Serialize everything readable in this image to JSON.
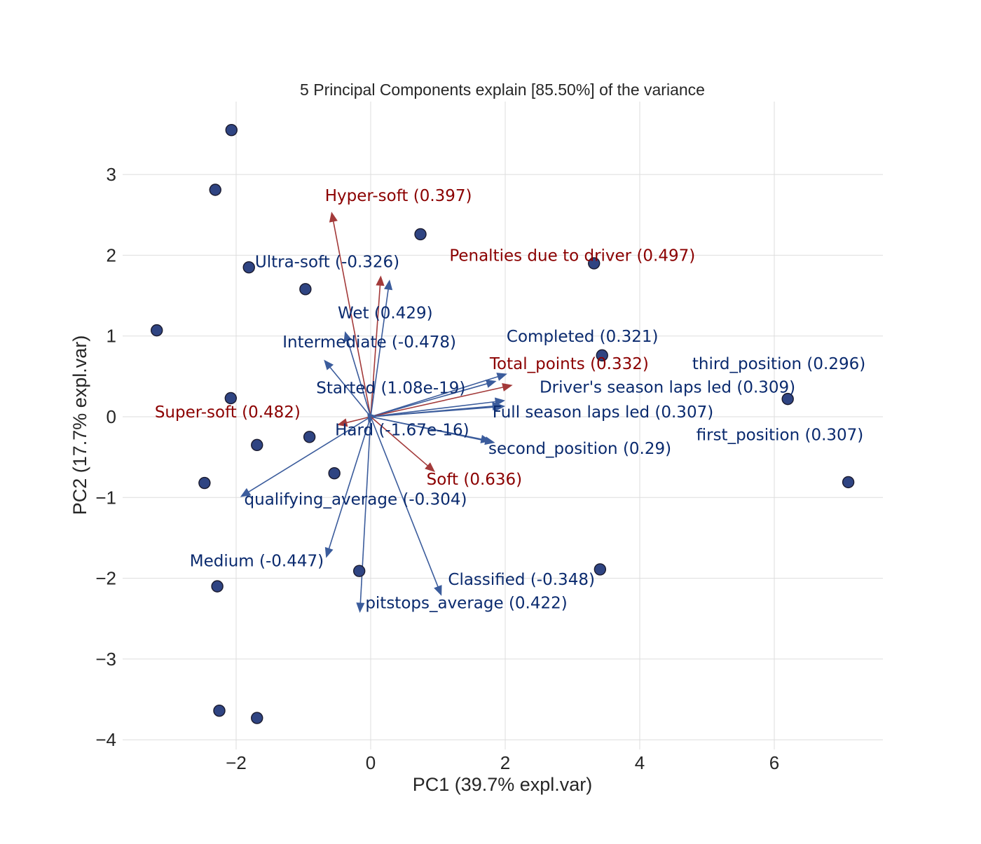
{
  "chart_data": {
    "type": "scatter",
    "title": "5 Principal Components explain [85.50%] of the variance",
    "xlabel": "PC1 (39.7% expl.var)",
    "ylabel": "PC2 (17.7% expl.var)",
    "xlim": [
      -3.5,
      7.6
    ],
    "ylim": [
      -4.0,
      3.9
    ],
    "x_ticks": [
      -2,
      0,
      2,
      4,
      6
    ],
    "y_ticks": [
      -4,
      -3,
      -2,
      -1,
      0,
      1,
      2,
      3
    ],
    "x_tick_labels": [
      "−2",
      "0",
      "2",
      "4",
      "6"
    ],
    "y_tick_labels": [
      "−4",
      "−3",
      "−2",
      "−1",
      "0",
      "1",
      "2",
      "3"
    ],
    "grid": true,
    "colors": {
      "point_fill": "#2f4482",
      "point_edge": "#1a1a2e",
      "loading_blue": "#0a2a6e",
      "loading_red": "#8b0000",
      "arrow_blue": "#3b5c9c",
      "arrow_red": "#a33a3a",
      "grid": "#dddddd"
    },
    "points": [
      {
        "x": -2.07,
        "y": 3.55
      },
      {
        "x": -2.31,
        "y": 2.81
      },
      {
        "x": 0.74,
        "y": 2.26
      },
      {
        "x": -1.81,
        "y": 1.85
      },
      {
        "x": 3.32,
        "y": 1.9
      },
      {
        "x": -0.97,
        "y": 1.58
      },
      {
        "x": -3.18,
        "y": 1.07
      },
      {
        "x": 3.44,
        "y": 0.76
      },
      {
        "x": -2.08,
        "y": 0.23
      },
      {
        "x": 6.2,
        "y": 0.22
      },
      {
        "x": -1.69,
        "y": -0.35
      },
      {
        "x": -0.91,
        "y": -0.25
      },
      {
        "x": -0.54,
        "y": -0.7
      },
      {
        "x": -2.47,
        "y": -0.82
      },
      {
        "x": 7.1,
        "y": -0.81
      },
      {
        "x": 3.41,
        "y": -1.89
      },
      {
        "x": -0.17,
        "y": -1.91
      },
      {
        "x": -2.28,
        "y": -2.1
      },
      {
        "x": -2.25,
        "y": -3.64
      },
      {
        "x": -1.69,
        "y": -3.73
      }
    ],
    "loadings": [
      {
        "label": "Hyper-soft (0.397)",
        "x": -0.58,
        "y": 2.53,
        "color": "red"
      },
      {
        "label": "Penalties due to driver (0.497)",
        "x": 0.15,
        "y": 1.74,
        "color": "red"
      },
      {
        "label": "Ultra-soft (-0.326)",
        "x": 0.28,
        "y": 1.69,
        "color": "blue"
      },
      {
        "label": "Wet (0.429)",
        "x": -0.38,
        "y": 1.05,
        "color": "blue"
      },
      {
        "label": "Intermediate (-0.478)",
        "x": -0.69,
        "y": 0.7,
        "color": "blue"
      },
      {
        "label": "Completed (0.321)",
        "x": 2.02,
        "y": 0.53,
        "color": "blue"
      },
      {
        "label": "third_position (0.296)",
        "x": 1.86,
        "y": 0.44,
        "color": "blue"
      },
      {
        "label": "Total_points (0.332)",
        "x": 2.1,
        "y": 0.39,
        "color": "red"
      },
      {
        "label": "Driver's season laps led (0.309)",
        "x": 1.99,
        "y": 0.2,
        "color": "blue"
      },
      {
        "label": "Full season laps led (0.307)",
        "x": 1.99,
        "y": 0.13,
        "color": "blue"
      },
      {
        "label": "Started (1.08e-19)",
        "x": 1.95,
        "y": 0.14,
        "color": "blue"
      },
      {
        "label": "Super-soft (0.482)",
        "x": -0.49,
        "y": -0.1,
        "color": "red"
      },
      {
        "label": "Hard (-1.67e-16)",
        "x": -0.03,
        "y": -0.08,
        "color": "blue"
      },
      {
        "label": "second_position (0.29)",
        "x": 1.84,
        "y": -0.32,
        "color": "blue"
      },
      {
        "label": "first_position (0.307)",
        "x": 1.78,
        "y": -0.3,
        "color": "blue"
      },
      {
        "label": "Soft (0.636)",
        "x": 0.95,
        "y": -0.68,
        "color": "red"
      },
      {
        "label": "qualifying_average (-0.304)",
        "x": -1.93,
        "y": -0.99,
        "color": "blue"
      },
      {
        "label": "Medium (-0.447)",
        "x": -0.66,
        "y": -1.74,
        "color": "blue"
      },
      {
        "label": "Classified (-0.348)",
        "x": 1.05,
        "y": -2.21,
        "color": "blue"
      },
      {
        "label": "pitstops_average (0.422)",
        "x": -0.16,
        "y": -2.42,
        "color": "blue"
      }
    ],
    "label_positions": {
      "Hyper-soft (0.397)": [
        -0.68,
        2.67
      ],
      "Penalties due to driver (0.497)": [
        1.17,
        1.93
      ],
      "Ultra-soft (-0.326)": [
        -1.72,
        1.85
      ],
      "Wet (0.429)": [
        -0.49,
        1.22
      ],
      "Intermediate (-0.478)": [
        -1.31,
        0.86
      ],
      "Completed (0.321)": [
        2.02,
        0.93
      ],
      "third_position (0.296)": [
        4.78,
        0.59
      ],
      "Total_points (0.332)": [
        1.77,
        0.59
      ],
      "Driver's season laps led (0.309)": [
        2.51,
        0.3
      ],
      "Full season laps led (0.307)": [
        1.81,
        -0.01
      ],
      "Started (1.08e-19)": [
        -0.81,
        0.29
      ],
      "Super-soft (0.482)": [
        -3.21,
        -0.01
      ],
      "Hard (-1.67e-16)": [
        -0.53,
        -0.23
      ],
      "second_position (0.29)": [
        1.75,
        -0.46
      ],
      "first_position (0.307)": [
        4.84,
        -0.29
      ],
      "Soft (0.636)": [
        0.83,
        -0.84
      ],
      "qualifying_average (-0.304)": [
        -1.88,
        -1.09
      ],
      "Medium (-0.447)": [
        -2.69,
        -1.85
      ],
      "Classified (-0.348)": [
        1.15,
        -2.08
      ],
      "pitstops_average (0.422)": [
        -0.08,
        -2.37
      ]
    }
  }
}
